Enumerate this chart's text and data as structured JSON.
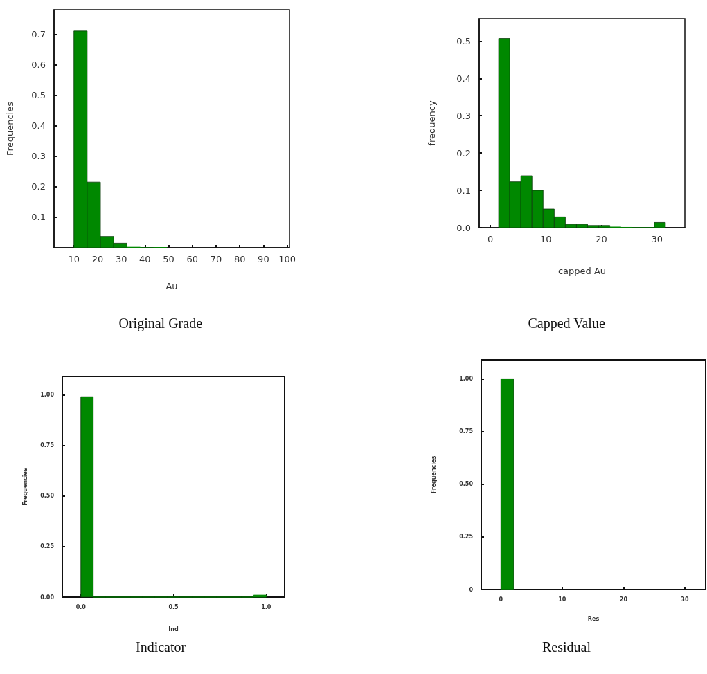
{
  "chart_data": [
    {
      "type": "histogram",
      "xlabel": "Au",
      "ylabel": "Frequencies",
      "annotations": [
        "Original Grade"
      ],
      "color": "#008800",
      "bins": [
        10,
        15.6,
        21.2,
        26.8,
        32.4,
        38,
        43.6,
        49.2
      ],
      "values": [
        0.71,
        0.215,
        0.037,
        0.015,
        0.002,
        0,
        0.001
      ],
      "xlim": [
        1.6,
        101
      ],
      "xticks": [
        10,
        20,
        30,
        40,
        50,
        60,
        70,
        80,
        90,
        100
      ],
      "ylim": [
        0,
        0.78
      ],
      "yticks": [
        0.1,
        0.2,
        0.3,
        0.4,
        0.5,
        0.6,
        0.7
      ],
      "grid": false
    },
    {
      "type": "histogram",
      "xlabel": "capped Au",
      "ylabel": "frequency",
      "annotations": [
        "Capped Value"
      ],
      "color": "#008800",
      "bins": [
        1.5,
        3.5,
        5.5,
        7.5,
        9.5,
        11.5,
        13.5,
        15.5,
        17.5,
        19.5,
        21.5,
        23.5,
        25.5,
        27.5,
        29.5,
        31.5
      ],
      "values": [
        0.507,
        0.123,
        0.139,
        0.1,
        0.05,
        0.029,
        0.009,
        0.009,
        0.006,
        0.006,
        0.002,
        0.001,
        0,
        0,
        0.014
      ],
      "xlim": [
        -2,
        35
      ],
      "xticks": [
        0,
        10,
        20,
        30
      ],
      "ylim": [
        0,
        0.56
      ],
      "yticks": [
        {
          "value": 0,
          "label": "0.0"
        },
        0.1,
        0.2,
        0.3,
        0.4,
        0.5
      ],
      "grid": false
    },
    {
      "type": "histogram",
      "xlabel": "Ind",
      "ylabel": "Frequencies",
      "annotations": [
        "Indicator"
      ],
      "color": "#008800",
      "bins": [
        0,
        0.067,
        0.133,
        0.2,
        0.267,
        0.333,
        0.4,
        0.467,
        0.533,
        0.6,
        0.667,
        0.733,
        0.8,
        0.867,
        0.933,
        1
      ],
      "values": [
        0.99,
        0,
        0,
        0,
        0,
        0,
        0,
        0,
        0,
        0,
        0,
        0,
        0,
        0,
        0.01
      ],
      "xlim": [
        -0.1,
        1.1
      ],
      "xticks": [
        {
          "value": 0,
          "label": "0.0"
        },
        0.5,
        {
          "value": 1,
          "label": "1.0"
        }
      ],
      "ylim": [
        0,
        1.09
      ],
      "yticks": [
        {
          "value": 0,
          "label": "0.00"
        },
        0.25,
        {
          "value": 0.5,
          "label": "0.50"
        },
        0.75,
        {
          "value": 1,
          "label": "1.00"
        }
      ],
      "grid": false
    },
    {
      "type": "histogram",
      "xlabel": "Res",
      "ylabel": "Frequencies",
      "annotations": [
        "Residual"
      ],
      "color": "#008800",
      "bins": [
        0,
        2.1
      ],
      "values": [
        1.0
      ],
      "xlim": [
        -3.2,
        33.4
      ],
      "xticks": [
        0,
        10,
        20,
        30
      ],
      "ylim": [
        0,
        1.09
      ],
      "yticks": [
        0,
        0.25,
        {
          "value": 0.5,
          "label": "0.50"
        },
        0.75,
        {
          "value": 1,
          "label": "1.00"
        }
      ],
      "grid": false
    }
  ]
}
